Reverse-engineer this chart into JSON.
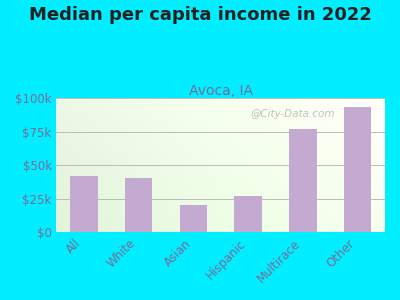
{
  "title": "Median per capita income in 2022",
  "subtitle": "Avoca, IA",
  "categories": [
    "All",
    "White",
    "Asian",
    "Hispanic",
    "Multirace",
    "Other"
  ],
  "values": [
    42000,
    40000,
    20000,
    27000,
    77000,
    93000
  ],
  "bar_color": "#c4aad0",
  "title_fontsize": 13,
  "subtitle_fontsize": 10,
  "title_color": "#222222",
  "subtitle_color": "#7a6a9a",
  "ytick_color": "#7a6a9a",
  "xtick_color": "#7a6a9a",
  "background_outer": "#00eeff",
  "grid_color": "#bbbbbb",
  "ylim": [
    0,
    100000
  ],
  "yticks": [
    0,
    25000,
    50000,
    75000,
    100000
  ],
  "ytick_labels": [
    "$0",
    "$25k",
    "$50k",
    "$75k",
    "$100k"
  ],
  "watermark": "@City-Data.com"
}
